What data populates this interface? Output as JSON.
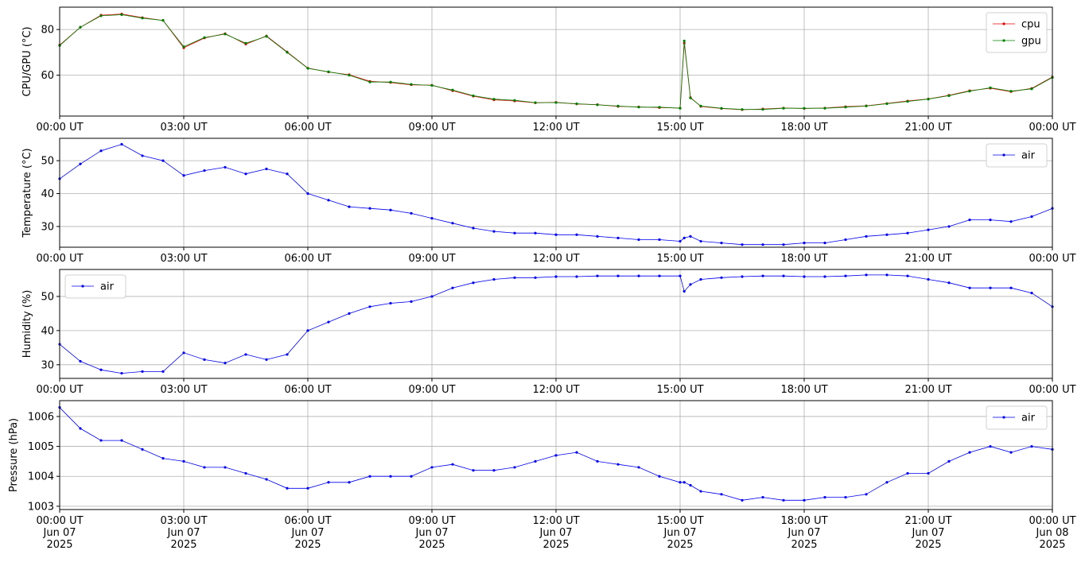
{
  "chart_data": [
    {
      "type": "line",
      "ylabel": "CPU/GPU (°C)",
      "legend": "upper right",
      "grid": true,
      "x": [
        0,
        0.5,
        1,
        1.5,
        2,
        2.5,
        3,
        3.5,
        4,
        4.5,
        5,
        5.5,
        6,
        6.5,
        7,
        7.5,
        8,
        8.5,
        9,
        9.5,
        10,
        10.5,
        11,
        11.5,
        12,
        12.5,
        13,
        13.5,
        14,
        14.5,
        15,
        15.1,
        15.25,
        15.5,
        16,
        16.5,
        17,
        17.5,
        18,
        18.5,
        19,
        19.5,
        20,
        20.5,
        21,
        21.5,
        22,
        22.5,
        23,
        23.5,
        24
      ],
      "xlim": [
        0,
        24
      ],
      "xticks": [
        {
          "value": 0,
          "label": "00:00 UT"
        },
        {
          "value": 3,
          "label": "03:00 UT"
        },
        {
          "value": 6,
          "label": "06:00 UT"
        },
        {
          "value": 9,
          "label": "09:00 UT"
        },
        {
          "value": 12,
          "label": "12:00 UT"
        },
        {
          "value": 15,
          "label": "15:00 UT"
        },
        {
          "value": 18,
          "label": "18:00 UT"
        },
        {
          "value": 21,
          "label": "21:00 UT"
        },
        {
          "value": 24,
          "label": "00:00 UT"
        }
      ],
      "ylim": [
        42.1,
        89.8
      ],
      "yticks": [
        60,
        80
      ],
      "series": [
        {
          "name": "cpu",
          "color": "#e00000",
          "values": [
            73.2,
            81,
            86.3,
            86.8,
            85.2,
            84,
            72,
            76.3,
            78.2,
            73.6,
            77.2,
            70.2,
            63.1,
            61.4,
            60.2,
            57.3,
            56.8,
            55.8,
            55.6,
            53.2,
            50.8,
            49.2,
            48.7,
            47.9,
            48.1,
            47.4,
            47.1,
            46.3,
            46.1,
            45.8,
            45.6,
            74,
            50.2,
            46.3,
            45.4,
            44.9,
            45.2,
            45.6,
            45.4,
            45.6,
            46.2,
            46.6,
            47.6,
            48.7,
            49.6,
            51.2,
            53.2,
            54.3,
            52.8,
            54.2,
            59.2
          ]
        },
        {
          "name": "gpu",
          "color": "#008000",
          "values": [
            73,
            81,
            86,
            86.5,
            85,
            84,
            72.5,
            76.5,
            78,
            74,
            77,
            70,
            63,
            61.5,
            60,
            57,
            57,
            56,
            55.5,
            53.5,
            51,
            49.5,
            49,
            48,
            48,
            47.5,
            47,
            46.5,
            46,
            46,
            45.5,
            75,
            50,
            46.5,
            45.5,
            45,
            45,
            45.5,
            45.5,
            45.5,
            46,
            46.5,
            47.5,
            48.5,
            49.5,
            51,
            53,
            54.5,
            53,
            54,
            59
          ]
        }
      ]
    },
    {
      "type": "line",
      "ylabel": "Temperature (°C)",
      "legend": "upper right",
      "grid": true,
      "x": [
        0,
        0.5,
        1,
        1.5,
        2,
        2.5,
        3,
        3.5,
        4,
        4.5,
        5,
        5.5,
        6,
        6.5,
        7,
        7.5,
        8,
        8.5,
        9,
        9.5,
        10,
        10.5,
        11,
        11.5,
        12,
        12.5,
        13,
        13.5,
        14,
        14.5,
        15,
        15.1,
        15.25,
        15.5,
        16,
        16.5,
        17,
        17.5,
        18,
        18.5,
        19,
        19.5,
        20,
        20.5,
        21,
        21.5,
        22,
        22.5,
        23,
        23.5,
        24
      ],
      "xlim": [
        0,
        24
      ],
      "xticks": [
        {
          "value": 0,
          "label": "00:00 UT"
        },
        {
          "value": 3,
          "label": "03:00 UT"
        },
        {
          "value": 6,
          "label": "06:00 UT"
        },
        {
          "value": 9,
          "label": "09:00 UT"
        },
        {
          "value": 12,
          "label": "12:00 UT"
        },
        {
          "value": 15,
          "label": "15:00 UT"
        },
        {
          "value": 18,
          "label": "18:00 UT"
        },
        {
          "value": 21,
          "label": "21:00 UT"
        },
        {
          "value": 24,
          "label": "00:00 UT"
        }
      ],
      "ylim": [
        23.7,
        56.8
      ],
      "yticks": [
        30,
        40,
        50
      ],
      "series": [
        {
          "name": "air",
          "color": "#0000ee",
          "values": [
            44.5,
            49,
            53,
            55,
            51.5,
            50,
            45.5,
            47,
            48,
            46,
            47.5,
            46,
            40,
            38,
            36,
            35.5,
            35,
            34,
            32.5,
            31,
            29.5,
            28.5,
            28,
            28,
            27.5,
            27.5,
            27,
            26.5,
            26,
            26,
            25.5,
            26.5,
            27,
            25.5,
            25,
            24.5,
            24.5,
            24.5,
            25,
            25,
            26,
            27,
            27.5,
            28,
            29,
            30,
            32,
            32,
            31.5,
            33,
            35.5
          ]
        }
      ]
    },
    {
      "type": "line",
      "ylabel": "Humidity (%)",
      "legend": "upper left",
      "grid": true,
      "x": [
        0,
        0.5,
        1,
        1.5,
        2,
        2.5,
        3,
        3.5,
        4,
        4.5,
        5,
        5.5,
        6,
        6.5,
        7,
        7.5,
        8,
        8.5,
        9,
        9.5,
        10,
        10.5,
        11,
        11.5,
        12,
        12.5,
        13,
        13.5,
        14,
        14.5,
        15,
        15.1,
        15.25,
        15.5,
        16,
        16.5,
        17,
        17.5,
        18,
        18.5,
        19,
        19.5,
        20,
        20.5,
        21,
        21.5,
        22,
        22.5,
        23,
        23.5,
        24
      ],
      "xlim": [
        0,
        24
      ],
      "xticks": [
        {
          "value": 0,
          "label": "00:00 UT"
        },
        {
          "value": 3,
          "label": "03:00 UT"
        },
        {
          "value": 6,
          "label": "06:00 UT"
        },
        {
          "value": 9,
          "label": "09:00 UT"
        },
        {
          "value": 12,
          "label": "12:00 UT"
        },
        {
          "value": 15,
          "label": "15:00 UT"
        },
        {
          "value": 18,
          "label": "18:00 UT"
        },
        {
          "value": 21,
          "label": "21:00 UT"
        },
        {
          "value": 24,
          "label": "00:00 UT"
        }
      ],
      "ylim": [
        26,
        57.9
      ],
      "yticks": [
        30,
        40,
        50
      ],
      "series": [
        {
          "name": "air",
          "color": "#0000ee",
          "values": [
            36,
            31,
            28.5,
            27.5,
            28,
            28,
            33.5,
            31.5,
            30.5,
            33,
            31.5,
            33,
            40,
            42.5,
            45,
            47,
            48,
            48.5,
            50,
            52.5,
            54,
            55,
            55.5,
            55.5,
            55.8,
            55.8,
            56,
            56,
            56,
            56,
            56,
            51.5,
            53.5,
            55,
            55.5,
            55.8,
            56,
            56,
            55.8,
            55.8,
            56,
            56.3,
            56.3,
            56,
            55,
            54,
            52.5,
            52.5,
            52.5,
            51,
            47
          ]
        }
      ]
    },
    {
      "type": "line",
      "ylabel": "Pressure (hPa)",
      "legend": "upper right",
      "grid": true,
      "x": [
        0,
        0.5,
        1,
        1.5,
        2,
        2.5,
        3,
        3.5,
        4,
        4.5,
        5,
        5.5,
        6,
        6.5,
        7,
        7.5,
        8,
        8.5,
        9,
        9.5,
        10,
        10.5,
        11,
        11.5,
        12,
        12.5,
        13,
        13.5,
        14,
        14.5,
        15,
        15.1,
        15.25,
        15.5,
        16,
        16.5,
        17,
        17.5,
        18,
        18.5,
        19,
        19.5,
        20,
        20.5,
        21,
        21.5,
        22,
        22.5,
        23,
        23.5,
        24
      ],
      "xlim": [
        0,
        24
      ],
      "xticks": [
        {
          "value": 0,
          "label": "00:00 UT\nJun 07\n2025"
        },
        {
          "value": 3,
          "label": "03:00 UT\nJun 07\n2025"
        },
        {
          "value": 6,
          "label": "06:00 UT\nJun 07\n2025"
        },
        {
          "value": 9,
          "label": "09:00 UT\nJun 07\n2025"
        },
        {
          "value": 12,
          "label": "12:00 UT\nJun 07\n2025"
        },
        {
          "value": 15,
          "label": "15:00 UT\nJun 07\n2025"
        },
        {
          "value": 18,
          "label": "18:00 UT\nJun 07\n2025"
        },
        {
          "value": 21,
          "label": "21:00 UT\nJun 07\n2025"
        },
        {
          "value": 24,
          "label": "00:00 UT\nJun 08\n2025"
        }
      ],
      "ylim": [
        1002.89,
        1006.53
      ],
      "yticks": [
        1003,
        1004,
        1005,
        1006
      ],
      "series": [
        {
          "name": "air",
          "color": "#0000ee",
          "values": [
            1006.3,
            1005.6,
            1005.2,
            1005.2,
            1004.9,
            1004.6,
            1004.5,
            1004.3,
            1004.3,
            1004.1,
            1003.9,
            1003.6,
            1003.6,
            1003.8,
            1003.8,
            1004,
            1004,
            1004,
            1004.3,
            1004.4,
            1004.2,
            1004.2,
            1004.3,
            1004.5,
            1004.7,
            1004.8,
            1004.5,
            1004.4,
            1004.3,
            1004,
            1003.8,
            1003.8,
            1003.7,
            1003.5,
            1003.4,
            1003.2,
            1003.3,
            1003.2,
            1003.2,
            1003.3,
            1003.3,
            1003.4,
            1003.8,
            1004.1,
            1004.1,
            1004.5,
            1004.8,
            1005,
            1004.8,
            1005,
            1004.9
          ]
        }
      ]
    }
  ]
}
